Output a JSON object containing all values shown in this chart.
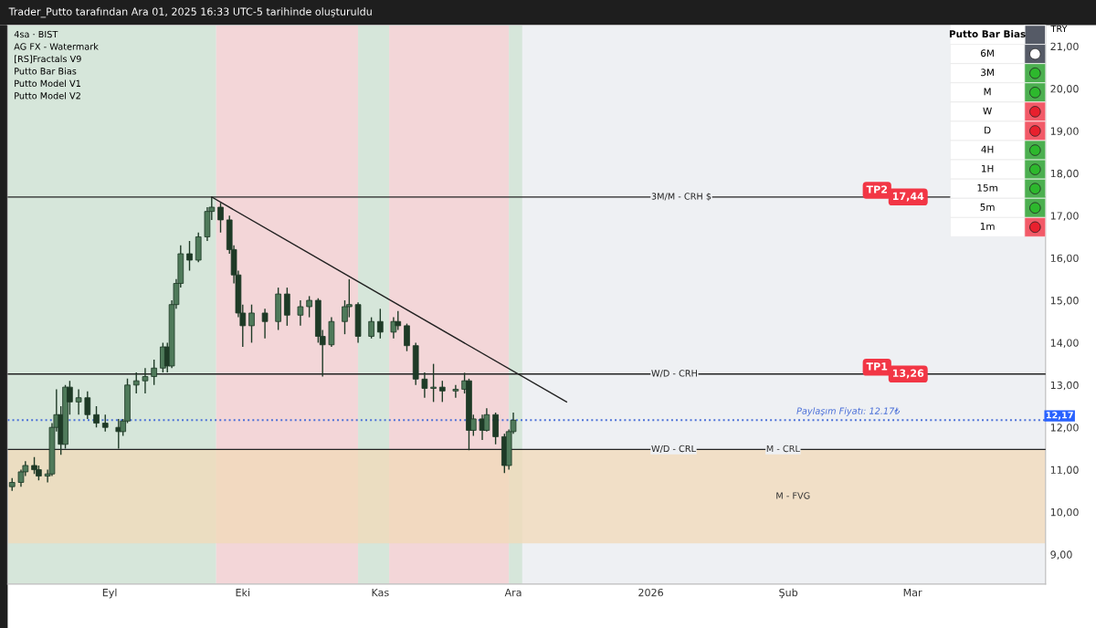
{
  "chart_data": [
    {
      "type": "candlestick",
      "title": "Trader_Putto tarafından Ara 01, 2025 16:33 UTC-5 tarihinde oluşturuldu",
      "ylabel": "TRY",
      "color": "#1e3a26",
      "x": [
        "2025-08-10",
        "2025-08-12",
        "2025-08-13",
        "2025-08-15",
        "2025-08-16",
        "2025-08-18",
        "2025-08-19",
        "2025-08-20",
        "2025-08-21",
        "2025-08-22",
        "2025-08-23",
        "2025-08-25",
        "2025-08-27",
        "2025-08-29",
        "2025-08-31",
        "2025-09-03",
        "2025-09-04",
        "2025-09-05",
        "2025-09-07",
        "2025-09-09",
        "2025-09-11",
        "2025-09-13",
        "2025-09-14",
        "2025-09-15",
        "2025-09-16",
        "2025-09-17",
        "2025-09-19",
        "2025-09-21",
        "2025-09-23",
        "2025-09-24",
        "2025-09-26",
        "2025-09-28",
        "2025-09-29",
        "2025-09-30",
        "2025-10-01",
        "2025-10-03",
        "2025-10-06",
        "2025-10-09",
        "2025-10-11",
        "2025-10-14",
        "2025-10-16",
        "2025-10-18",
        "2025-10-19",
        "2025-10-21",
        "2025-10-24",
        "2025-10-25",
        "2025-10-27",
        "2025-10-30",
        "2025-11-01",
        "2025-11-04",
        "2025-11-05",
        "2025-11-07",
        "2025-11-09",
        "2025-11-11",
        "2025-11-13",
        "2025-11-15",
        "2025-11-18",
        "2025-11-20",
        "2025-11-21",
        "2025-11-22",
        "2025-11-24",
        "2025-11-25",
        "2025-11-27",
        "2025-11-29",
        "2025-11-30",
        "2025-12-01"
      ],
      "ohlc": [
        [
          10.6,
          10.8,
          10.5,
          10.7
        ],
        [
          10.7,
          11.0,
          10.6,
          10.95
        ],
        [
          10.95,
          11.2,
          10.85,
          11.1
        ],
        [
          11.1,
          11.3,
          10.9,
          11.0
        ],
        [
          11.0,
          11.1,
          10.75,
          10.85
        ],
        [
          10.85,
          11.0,
          10.7,
          10.9
        ],
        [
          10.9,
          12.1,
          10.85,
          12.0
        ],
        [
          12.0,
          12.9,
          11.9,
          12.3
        ],
        [
          12.3,
          12.5,
          11.35,
          11.6
        ],
        [
          11.6,
          13.0,
          11.5,
          12.95
        ],
        [
          12.95,
          13.1,
          12.3,
          12.6
        ],
        [
          12.6,
          12.9,
          12.3,
          12.7
        ],
        [
          12.7,
          12.85,
          12.2,
          12.3
        ],
        [
          12.3,
          12.5,
          12.0,
          12.1
        ],
        [
          12.1,
          12.3,
          11.9,
          12.0
        ],
        [
          12.0,
          12.2,
          11.5,
          11.9
        ],
        [
          11.9,
          12.2,
          11.8,
          12.15
        ],
        [
          12.15,
          13.15,
          12.1,
          13.0
        ],
        [
          13.0,
          13.3,
          12.8,
          13.1
        ],
        [
          13.1,
          13.4,
          12.8,
          13.2
        ],
        [
          13.2,
          13.6,
          13.0,
          13.4
        ],
        [
          13.4,
          14.0,
          13.3,
          13.9
        ],
        [
          13.9,
          14.0,
          13.3,
          13.45
        ],
        [
          13.45,
          15.0,
          13.4,
          14.9
        ],
        [
          14.9,
          15.5,
          14.8,
          15.4
        ],
        [
          15.4,
          16.3,
          15.3,
          16.1
        ],
        [
          16.1,
          16.4,
          15.7,
          15.95
        ],
        [
          15.95,
          16.6,
          15.9,
          16.5
        ],
        [
          16.5,
          17.2,
          16.4,
          17.1
        ],
        [
          17.1,
          17.44,
          16.9,
          17.2
        ],
        [
          17.2,
          17.3,
          16.6,
          16.9
        ],
        [
          16.9,
          17.0,
          16.1,
          16.2
        ],
        [
          16.2,
          16.3,
          15.4,
          15.6
        ],
        [
          15.6,
          15.7,
          14.6,
          14.7
        ],
        [
          14.7,
          14.9,
          13.9,
          14.4
        ],
        [
          14.4,
          14.9,
          14.0,
          14.7
        ],
        [
          14.7,
          14.8,
          14.1,
          14.5
        ],
        [
          14.5,
          15.3,
          14.3,
          15.15
        ],
        [
          15.15,
          15.3,
          14.4,
          14.65
        ],
        [
          14.65,
          15.0,
          14.4,
          14.85
        ],
        [
          14.85,
          15.1,
          14.6,
          15.0
        ],
        [
          15.0,
          15.05,
          14.0,
          14.15
        ],
        [
          14.15,
          14.3,
          13.2,
          13.95
        ],
        [
          13.95,
          14.6,
          13.9,
          14.5
        ],
        [
          14.5,
          15.0,
          14.2,
          14.85
        ],
        [
          14.85,
          15.5,
          14.6,
          14.9
        ],
        [
          14.9,
          14.95,
          14.0,
          14.15
        ],
        [
          14.15,
          14.6,
          14.1,
          14.5
        ],
        [
          14.5,
          14.8,
          14.1,
          14.25
        ],
        [
          14.25,
          14.6,
          14.1,
          14.5
        ],
        [
          14.5,
          14.75,
          14.3,
          14.4
        ],
        [
          14.4,
          14.45,
          13.8,
          13.93
        ],
        [
          13.93,
          14.0,
          13.0,
          13.14
        ],
        [
          13.14,
          13.3,
          12.7,
          12.92
        ],
        [
          12.92,
          13.5,
          12.6,
          12.95
        ],
        [
          12.95,
          13.1,
          12.6,
          12.86
        ],
        [
          12.86,
          13.0,
          12.7,
          12.9
        ],
        [
          12.9,
          13.29,
          12.8,
          13.1
        ],
        [
          13.1,
          13.15,
          11.46,
          11.93
        ],
        [
          11.93,
          12.3,
          11.8,
          12.2
        ],
        [
          12.2,
          12.3,
          11.7,
          11.93
        ],
        [
          11.93,
          12.45,
          11.9,
          12.3
        ],
        [
          12.3,
          12.35,
          11.6,
          11.78
        ],
        [
          11.78,
          11.85,
          10.92,
          11.1
        ],
        [
          11.1,
          11.95,
          11.0,
          11.9
        ],
        [
          11.9,
          12.35,
          11.85,
          12.17
        ]
      ],
      "series": [
        {
          "type": "line",
          "color": "#222222",
          "x": [
            "2025-09-24",
            "2025-12-13"
          ],
          "values": [
            17.44,
            12.6
          ]
        }
      ],
      "xlim": [
        "2025-08-09",
        "2026-03-31"
      ],
      "ylim": [
        8.3,
        21.5
      ],
      "xticks": [
        {
          "value": "2025-09-01",
          "label": "Eyl"
        },
        {
          "value": "2025-10-01",
          "label": "Eki"
        },
        {
          "value": "2025-11-01",
          "label": "Kas"
        },
        {
          "value": "2025-12-01",
          "label": "Ara"
        },
        {
          "value": "2026-01-01",
          "label": "2026"
        },
        {
          "value": "2026-02-01",
          "label": "Şub"
        },
        {
          "value": "2026-03-01",
          "label": "Mar"
        }
      ],
      "yticks": [
        {
          "value": 9,
          "label": "9,00"
        },
        {
          "value": 10,
          "label": "10,00"
        },
        {
          "value": 11,
          "label": "11,00"
        },
        {
          "value": 12,
          "label": "12,00"
        },
        {
          "value": 13,
          "label": "13,00"
        },
        {
          "value": 14,
          "label": "14,00"
        },
        {
          "value": 15,
          "label": "15,00"
        },
        {
          "value": 16,
          "label": "16,00"
        },
        {
          "value": 17,
          "label": "17,00"
        },
        {
          "value": 18,
          "label": "18,00"
        },
        {
          "value": 19,
          "label": "19,00"
        },
        {
          "value": 20,
          "label": "20,00"
        },
        {
          "value": 21,
          "label": "21,00"
        }
      ],
      "bands": [
        {
          "axis": "x",
          "from": "2025-08-09",
          "to": "2025-09-25",
          "color": "#d6e6da"
        },
        {
          "axis": "x",
          "from": "2025-09-25",
          "to": "2025-10-27",
          "color": "#f3d6d8"
        },
        {
          "axis": "x",
          "from": "2025-10-27",
          "to": "2025-11-03",
          "color": "#d6e6da"
        },
        {
          "axis": "x",
          "from": "2025-11-03",
          "to": "2025-11-30",
          "color": "#f3d6d8"
        },
        {
          "axis": "x",
          "from": "2025-11-30",
          "to": "2025-12-03",
          "color": "#d6e6da"
        },
        {
          "axis": "y",
          "from": 9.26,
          "to": 11.48,
          "label": "M - FVG",
          "color": "#f2d9b8"
        }
      ],
      "ref_lines": [
        {
          "axis": "y",
          "value": 17.44,
          "label": "3M/M - CRH $",
          "color": "#222222",
          "line_style": "solid"
        },
        {
          "axis": "y",
          "value": 13.26,
          "label": "W/D - CRH",
          "color": "#222222",
          "line_style": "solid"
        },
        {
          "axis": "y",
          "value": 11.48,
          "label": "W/D - CRL",
          "color": "#222222",
          "line_style": "solid"
        },
        {
          "axis": "y",
          "value": 12.17,
          "label": "Paylaşım Fiyatı: 12.17₺",
          "color": "#4a6fd8",
          "line_style": "dotted"
        }
      ],
      "annotations": [
        "4sa · BIST",
        "AG FX - Watermark",
        "[RS]Fractals V9",
        "Putto Bar Bias",
        "Putto Model V1",
        "Putto Model V2",
        {
          "text": "TP2",
          "x": "2026-02-21",
          "y": 17.6
        },
        {
          "text": "17,44",
          "x": "2026-02-28",
          "y": 17.44
        },
        {
          "text": "TP1",
          "x": "2026-02-21",
          "y": 13.42
        },
        {
          "text": "13,26",
          "x": "2026-02-28",
          "y": 13.26
        },
        {
          "text": "M - CRL",
          "x": "2026-01-27",
          "y": 11.48
        },
        {
          "text": "12,17",
          "x": "2026-03-31",
          "y": 12.17
        }
      ],
      "grid": false
    },
    {
      "type": "other",
      "title": "Putto Bar Bias",
      "categories": [
        "6M",
        "3M",
        "M",
        "W",
        "D",
        "4H",
        "1H",
        "15m",
        "5m",
        "1m"
      ],
      "colors": [
        "#ffffff",
        "#2db82d",
        "#2db82d",
        "#e8202e",
        "#e8202e",
        "#2db82d",
        "#2db82d",
        "#2db82d",
        "#2db82d",
        "#e8202e"
      ]
    }
  ]
}
